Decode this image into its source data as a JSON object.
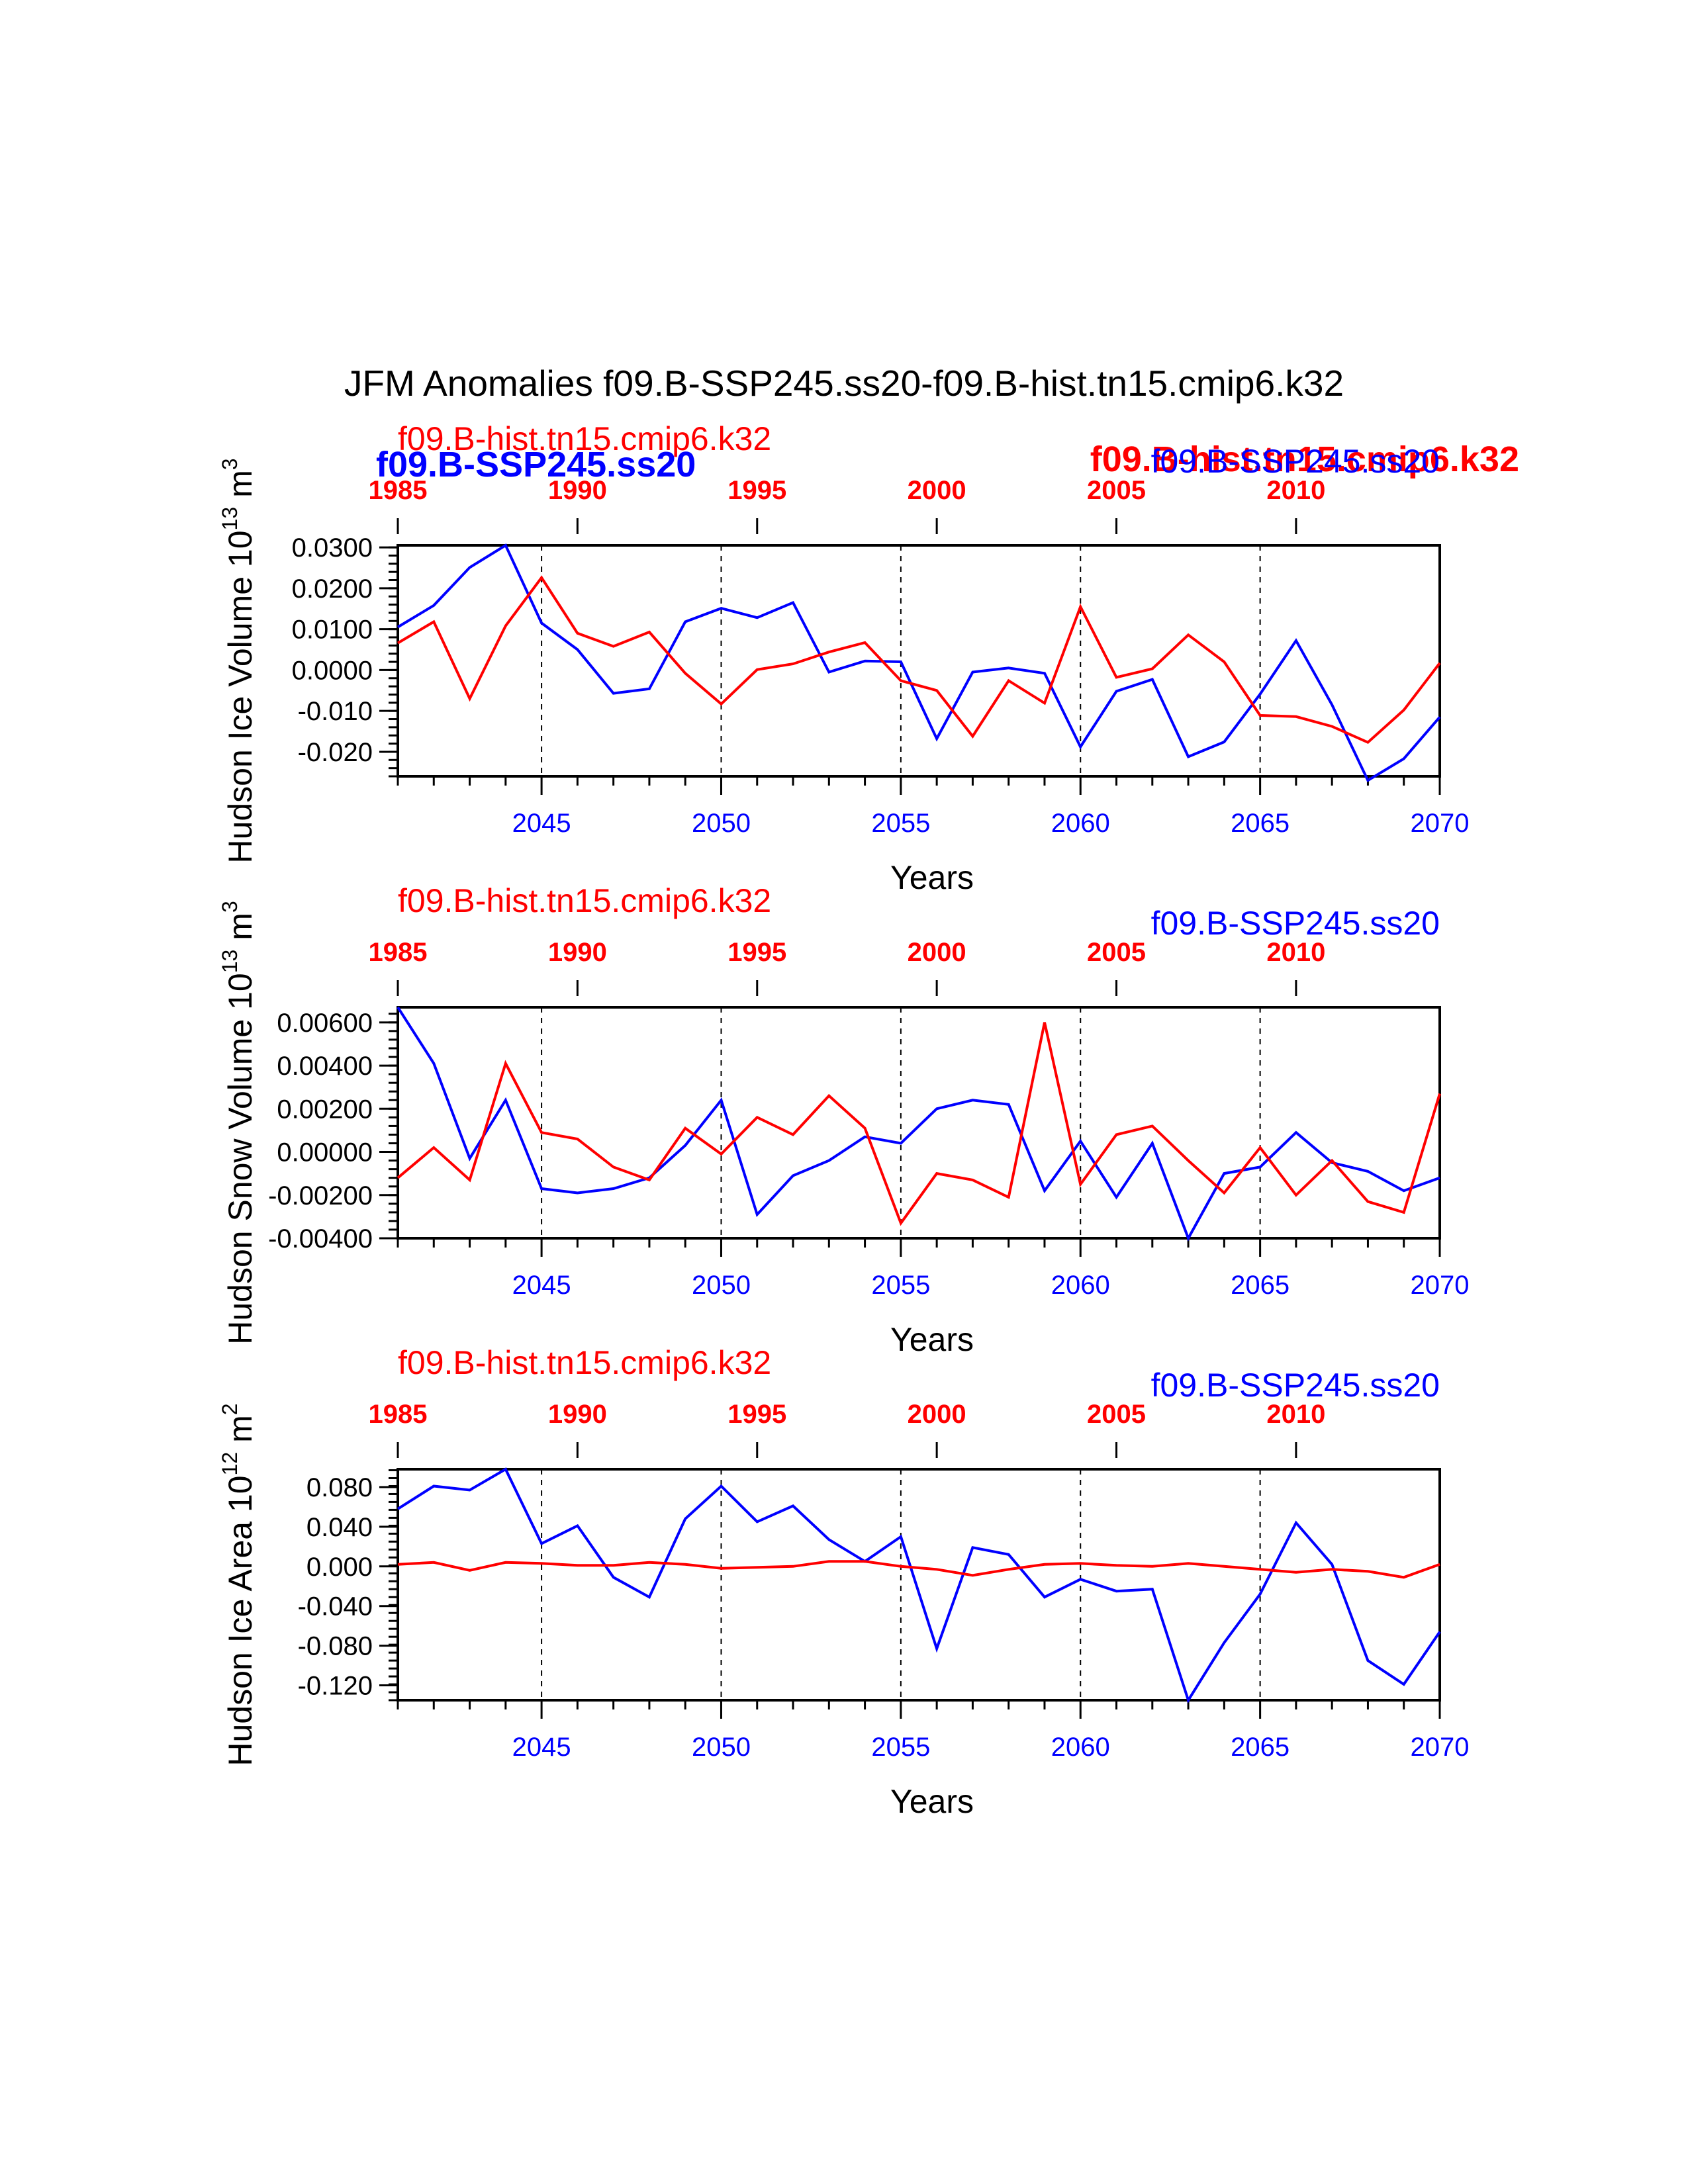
{
  "title": "JFM Anomalies f09.B-SSP245.ss20-f09.B-hist.tn15.cmip6.k32",
  "colors": {
    "ssp": "#0000ff",
    "hist": "#ff0000",
    "axis": "#000000"
  },
  "overlay_labels": {
    "hist_bold": "f09.B-hist.tn15.cmip6.k32",
    "ssp_bold": "f09.B-SSP245.ss20"
  },
  "chart_data": [
    {
      "type": "line",
      "ylabel": "Hudson Ice Volume 10",
      "ylabel_exp": "13",
      "ylabel_unit": "m",
      "ylabel_unit_exp": "3",
      "xlabel": "Years",
      "ylim": [
        -0.026,
        0.0305
      ],
      "ytick_values": [
        0.03,
        0.02,
        0.01,
        0.0,
        -0.01,
        -0.02
      ],
      "ytick_labels": [
        "0.0300",
        "0.0200",
        "0.0100",
        "0.0000",
        "-0.010",
        "-0.020"
      ],
      "hist_label": "f09.B-hist.tn15.cmip6.k32",
      "ssp_label": "f09.B-SSP245.ss20",
      "bottom_axis": {
        "range": [
          2041,
          2070
        ],
        "ticks": [
          2045,
          2050,
          2055,
          2060,
          2065,
          2070
        ],
        "labels": [
          "2045",
          "2050",
          "2055",
          "2060",
          "2065",
          "2070"
        ]
      },
      "top_axis": {
        "range": [
          1985,
          2014
        ],
        "ticks": [
          1985,
          1990,
          1995,
          2000,
          2005,
          2010
        ],
        "labels": [
          "1985",
          "1990",
          "1995",
          "2000",
          "2005",
          "2010"
        ]
      },
      "dashed_x": [
        2045,
        2050,
        2055,
        2060,
        2065
      ],
      "series": [
        {
          "name": "f09.B-SSP245.ss20",
          "color": "#0000ff",
          "x_start": 2041,
          "values": [
            0.0105,
            0.0158,
            0.0251,
            0.0305,
            0.0115,
            0.005,
            -0.0057,
            -0.0046,
            0.0118,
            0.0151,
            0.0128,
            0.0165,
            -0.0005,
            0.0022,
            0.002,
            -0.0168,
            -0.0005,
            0.0005,
            -0.0008,
            -0.0188,
            -0.0052,
            -0.0023,
            -0.0212,
            -0.0176,
            -0.0059,
            0.0072,
            -0.0085,
            -0.027,
            -0.0217,
            -0.0115
          ]
        },
        {
          "name": "f09.B-hist.tn15.cmip6.k32",
          "color": "#ff0000",
          "x_start": 2041,
          "values": [
            0.0066,
            0.0118,
            -0.007,
            0.0108,
            0.0226,
            0.009,
            0.0058,
            0.0093,
            -0.0008,
            -0.0083,
            0.0001,
            0.0015,
            0.0044,
            0.0067,
            -0.0026,
            -0.005,
            -0.0162,
            -0.0026,
            -0.0081,
            0.0155,
            -0.0018,
            0.0003,
            0.0086,
            0.002,
            -0.0111,
            -0.0114,
            -0.0138,
            -0.0177,
            -0.0098,
            0.0017
          ]
        }
      ]
    },
    {
      "type": "line",
      "ylabel": "Hudson Snow Volume 10",
      "ylabel_exp": "13",
      "ylabel_unit": "m",
      "ylabel_unit_exp": "3",
      "xlabel": "Years",
      "ylim": [
        -0.004,
        0.0067
      ],
      "ytick_values": [
        0.006,
        0.004,
        0.002,
        0.0,
        -0.002,
        -0.004
      ],
      "ytick_labels": [
        "0.00600",
        "0.00400",
        "0.00200",
        "0.00000",
        "-0.00200",
        "-0.00400"
      ],
      "hist_label": "f09.B-hist.tn15.cmip6.k32",
      "ssp_label": "f09.B-SSP245.ss20",
      "bottom_axis": {
        "range": [
          2041,
          2070
        ],
        "ticks": [
          2045,
          2050,
          2055,
          2060,
          2065,
          2070
        ],
        "labels": [
          "2045",
          "2050",
          "2055",
          "2060",
          "2065",
          "2070"
        ]
      },
      "top_axis": {
        "range": [
          1985,
          2014
        ],
        "ticks": [
          1985,
          1990,
          1995,
          2000,
          2005,
          2010
        ],
        "labels": [
          "1985",
          "1990",
          "1995",
          "2000",
          "2005",
          "2010"
        ]
      },
      "dashed_x": [
        2045,
        2050,
        2055,
        2060,
        2065
      ],
      "series": [
        {
          "name": "f09.B-SSP245.ss20",
          "color": "#0000ff",
          "x_start": 2041,
          "values": [
            0.0067,
            0.0041,
            -0.0003,
            0.0024,
            -0.0017,
            -0.0019,
            -0.0017,
            -0.0012,
            0.0003,
            0.0024,
            -0.0029,
            -0.0011,
            -0.0004,
            0.0007,
            0.0004,
            0.002,
            0.0024,
            0.0022,
            -0.0018,
            0.0005,
            -0.0021,
            0.0004,
            -0.004,
            -0.001,
            -0.0007,
            0.0009,
            -0.0005,
            -0.0009,
            -0.0018,
            -0.0012
          ]
        },
        {
          "name": "f09.B-hist.tn15.cmip6.k32",
          "color": "#ff0000",
          "x_start": 2041,
          "values": [
            -0.0012,
            0.0002,
            -0.0013,
            0.0041,
            0.0009,
            0.0006,
            -0.0007,
            -0.0013,
            0.0011,
            -0.0001,
            0.0016,
            0.0008,
            0.0026,
            0.0011,
            -0.0033,
            -0.001,
            -0.0013,
            -0.0021,
            0.006,
            -0.0015,
            0.0008,
            0.0012,
            -0.0004,
            -0.0019,
            0.0002,
            -0.002,
            -0.0004,
            -0.0023,
            -0.0028,
            0.0027
          ]
        }
      ]
    },
    {
      "type": "line",
      "ylabel": "Hudson Ice Area 10",
      "ylabel_exp": "12",
      "ylabel_unit": "m",
      "ylabel_unit_exp": "2",
      "xlabel": "Years",
      "ylim": [
        -0.135,
        0.098
      ],
      "ytick_values": [
        0.08,
        0.04,
        0.0,
        -0.04,
        -0.08,
        -0.12
      ],
      "ytick_labels": [
        "0.080",
        "0.040",
        "0.000",
        "-0.040",
        "-0.080",
        "-0.120"
      ],
      "hist_label": "f09.B-hist.tn15.cmip6.k32",
      "ssp_label": "f09.B-SSP245.ss20",
      "bottom_axis": {
        "range": [
          2041,
          2070
        ],
        "ticks": [
          2045,
          2050,
          2055,
          2060,
          2065,
          2070
        ],
        "labels": [
          "2045",
          "2050",
          "2055",
          "2060",
          "2065",
          "2070"
        ]
      },
      "top_axis": {
        "range": [
          1985,
          2014
        ],
        "ticks": [
          1985,
          1990,
          1995,
          2000,
          2005,
          2010
        ],
        "labels": [
          "1985",
          "1990",
          "1995",
          "2000",
          "2005",
          "2010"
        ]
      },
      "dashed_x": [
        2045,
        2050,
        2055,
        2060,
        2065
      ],
      "series": [
        {
          "name": "f09.B-SSP245.ss20",
          "color": "#0000ff",
          "x_start": 2041,
          "values": [
            0.058,
            0.081,
            0.077,
            0.098,
            0.023,
            0.041,
            -0.011,
            -0.031,
            0.048,
            0.081,
            0.045,
            0.061,
            0.027,
            0.005,
            0.03,
            -0.083,
            0.019,
            0.012,
            -0.031,
            -0.013,
            -0.025,
            -0.023,
            -0.135,
            -0.077,
            -0.028,
            0.044,
            0.002,
            -0.095,
            -0.119,
            -0.066
          ]
        },
        {
          "name": "f09.B-hist.tn15.cmip6.k32",
          "color": "#ff0000",
          "x_start": 2041,
          "values": [
            0.002,
            0.004,
            -0.004,
            0.004,
            0.003,
            0.001,
            0.001,
            0.004,
            0.002,
            -0.002,
            -0.001,
            0.0,
            0.005,
            0.005,
            0.0,
            -0.003,
            -0.009,
            -0.003,
            0.002,
            0.003,
            0.001,
            0.0,
            0.003,
            0.0,
            -0.003,
            -0.006,
            -0.003,
            -0.005,
            -0.011,
            0.002
          ]
        }
      ]
    }
  ]
}
